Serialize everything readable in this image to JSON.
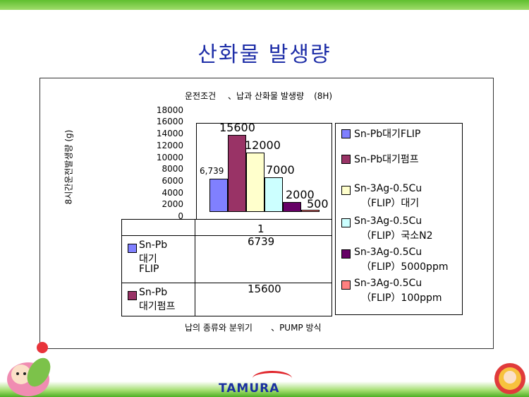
{
  "slide": {
    "title": "산화물 발생량",
    "logo": "TAMURA"
  },
  "chart_data": {
    "type": "bar",
    "title": "운전조건\t、납과 산화물 발생량\t(8H)",
    "ylabel": "8시간운전발생량 (g)",
    "xlabel": "납의 종류와 분위기\t、PUMP 방식",
    "categories": [
      "1"
    ],
    "ylim": [
      0,
      18000
    ],
    "yticks": [
      "18000",
      "16000",
      "14000",
      "12000",
      "10000",
      "8000",
      "6000",
      "4000",
      "2000",
      "0"
    ],
    "legend": "right",
    "series": [
      {
        "name": "Sn-Pb대기FLIP",
        "values": [
          6739
        ],
        "label": "6,739",
        "color": "#8080ff"
      },
      {
        "name": "Sn-Pb대기펌프",
        "values": [
          15600
        ],
        "label": "15600",
        "color": "#993366"
      },
      {
        "name": "Sn-3Ag-0.5Cu（FLIP）대기",
        "values": [
          12000
        ],
        "label": "12000",
        "color": "#ffffcc"
      },
      {
        "name": "Sn-3Ag-0.5Cu（FLIP）국소N2",
        "values": [
          7000
        ],
        "label": "7000",
        "color": "#ccffff"
      },
      {
        "name": "Sn-3Ag-0.5Cu（FLIP）5000ppm",
        "values": [
          2000
        ],
        "label": "2000",
        "color": "#660066"
      },
      {
        "name": "Sn-3Ag-0.5Cu（FLIP）100ppm",
        "values": [
          500
        ],
        "label": "500",
        "color": "#ff8080"
      }
    ]
  },
  "table": {
    "column": "1",
    "rows": [
      {
        "name_lines": [
          "Sn-Pb",
          "대기",
          "FLIP"
        ],
        "value": "6739",
        "color": "#8080ff"
      },
      {
        "name_lines": [
          "Sn-Pb",
          "대기펌프"
        ],
        "value": "15600",
        "color": "#993366"
      }
    ]
  },
  "legend_lines": [
    [
      "Sn-Pb대기FLIP"
    ],
    [
      "Sn-Pb대기펌프"
    ],
    [
      "Sn-3Ag-0.5Cu",
      "（FLIP）대기"
    ],
    [
      "Sn-3Ag-0.5Cu",
      "（FLIP）국소N2"
    ],
    [
      "Sn-3Ag-0.5Cu",
      "（FLIP）5000ppm"
    ],
    [
      "Sn-3Ag-0.5Cu",
      "（FLIP）100ppm"
    ]
  ]
}
